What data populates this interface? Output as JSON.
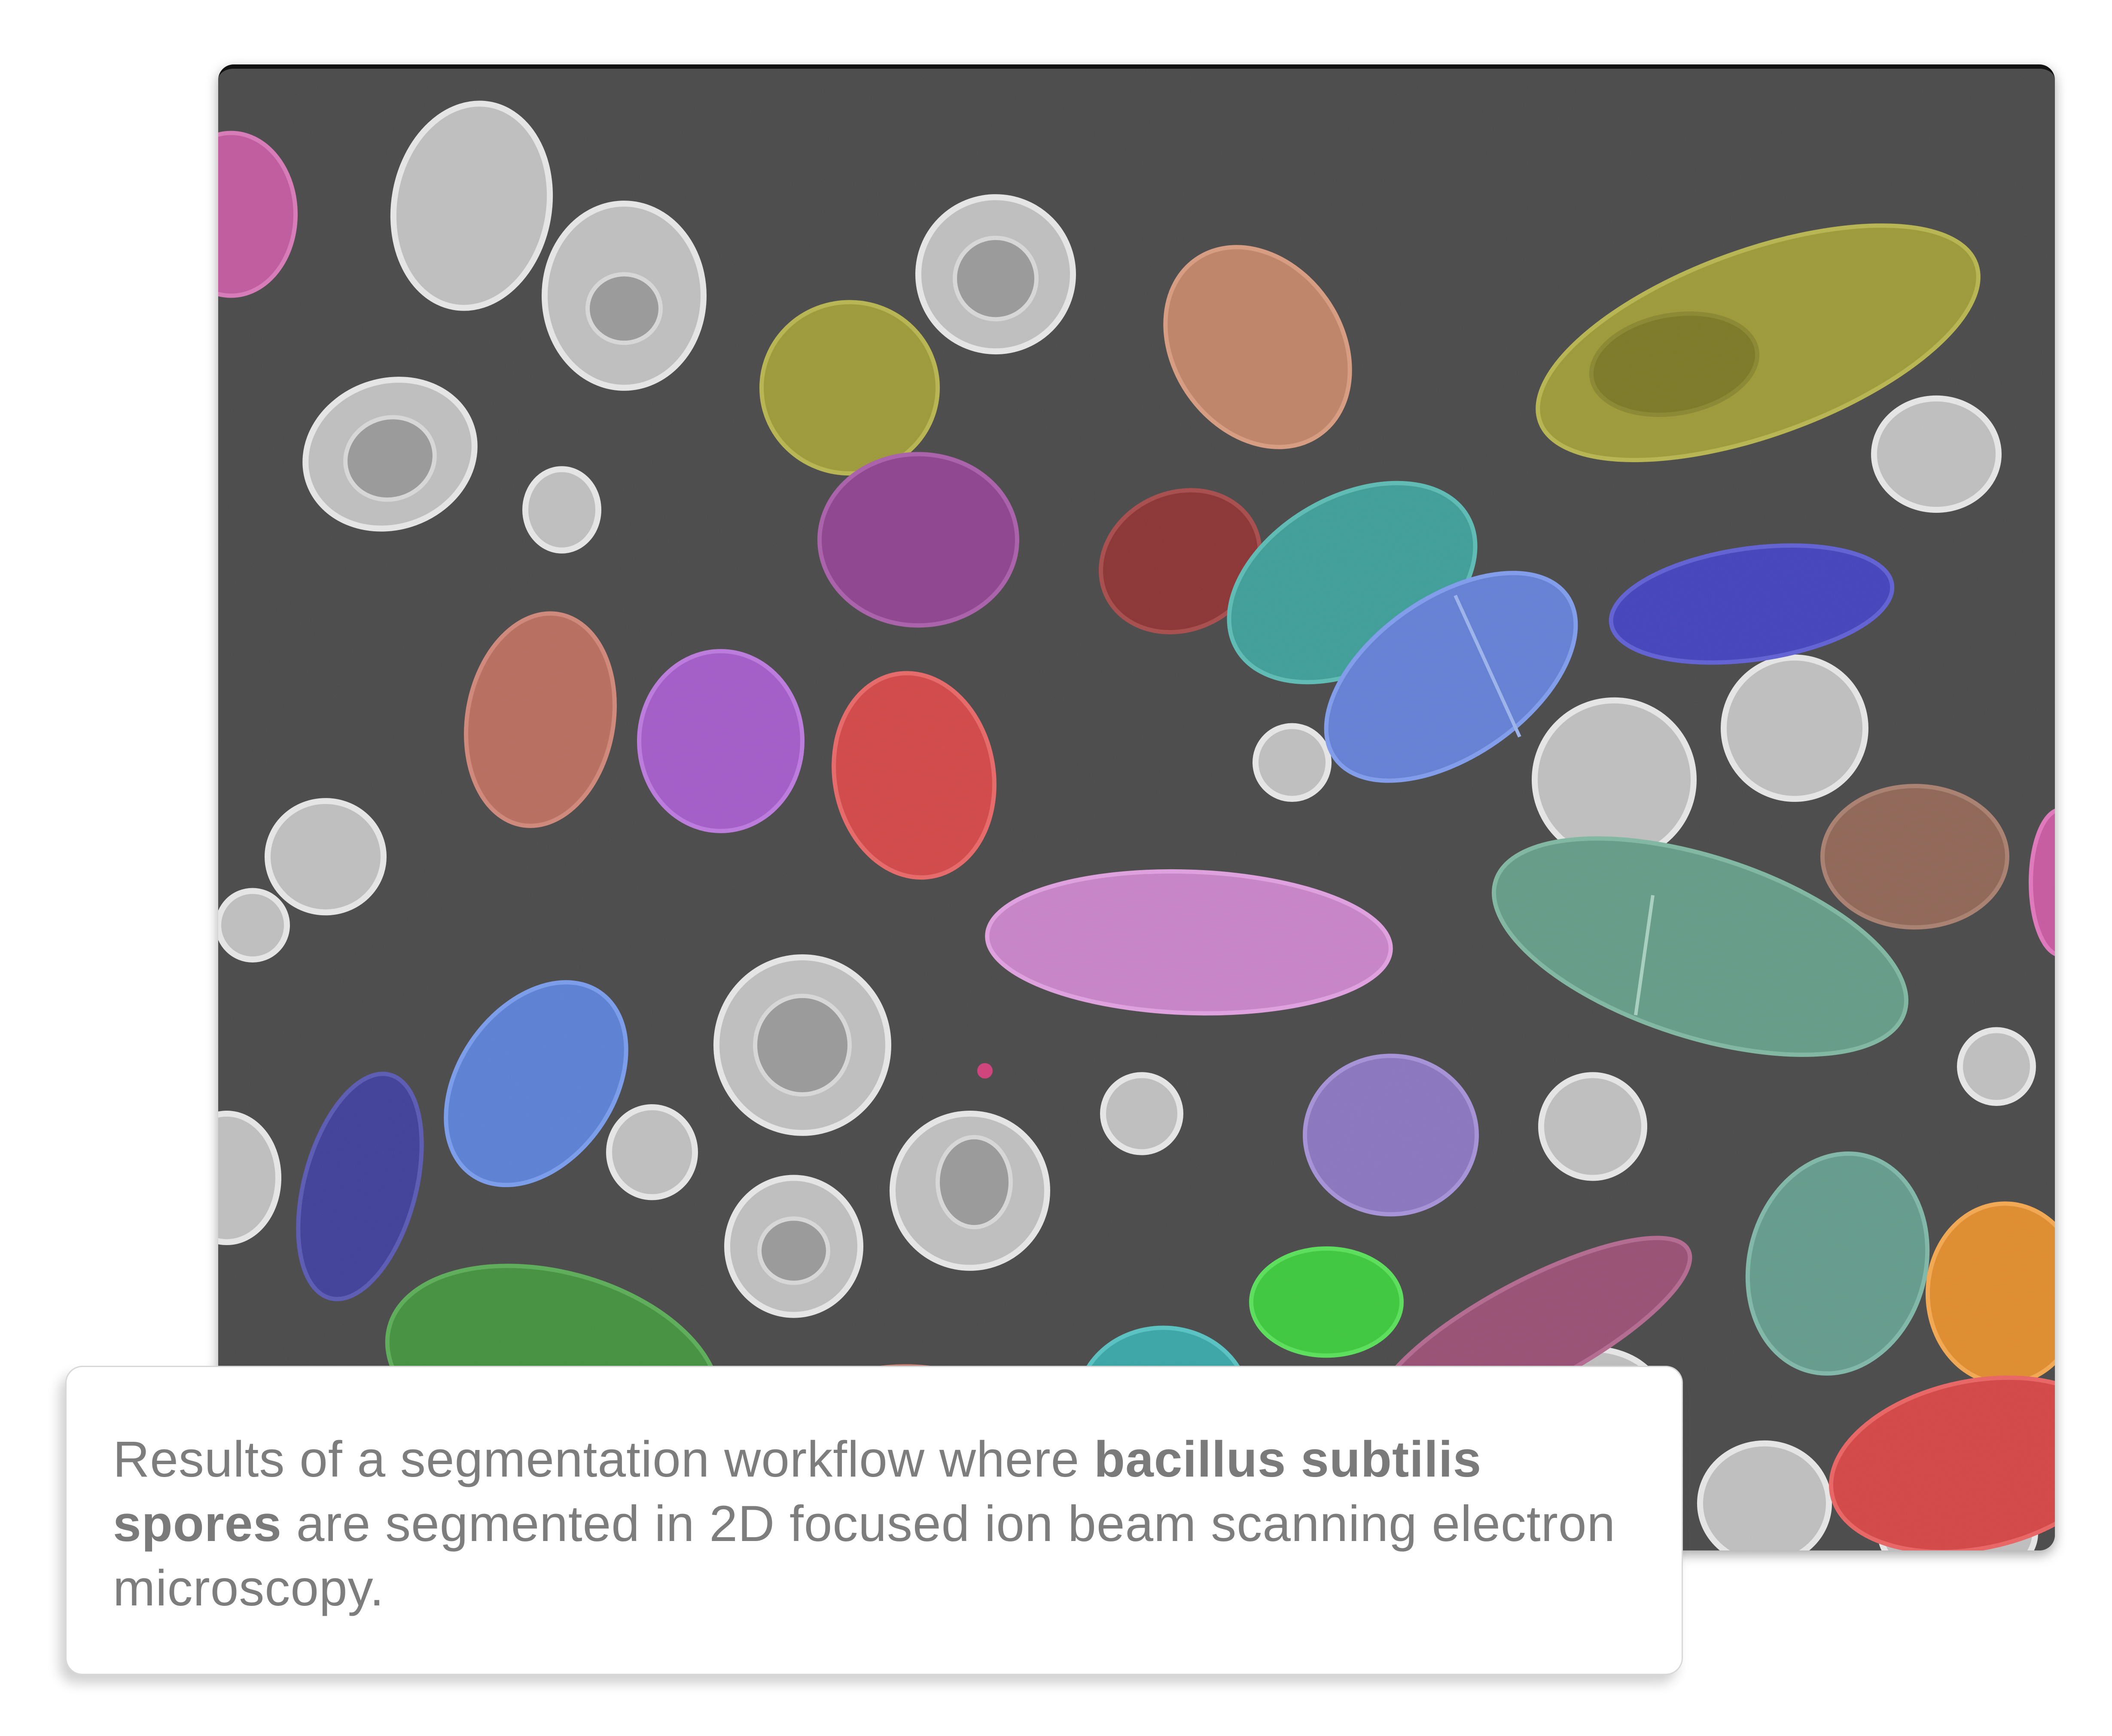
{
  "figure": {
    "description_alt": "",
    "colors": {
      "background": "#4a4a4a",
      "unlabeled_spore": "#c8c8c8",
      "segments": [
        "#d05aa8",
        "#a8a832",
        "#d08868",
        "#a8a832",
        "#a048a8",
        "#a03838",
        "#40b0a8",
        "#4848c8",
        "#d07060",
        "#b060d8",
        "#e04848",
        "#6890e0",
        "#d890d8",
        "#70a890",
        "#9880c8",
        "#6890e0",
        "#4848a8",
        "#48a048",
        "#40d040",
        "#a05880",
        "#40b0b0",
        "#70a898",
        "#e89030",
        "#e04848",
        "#b06858",
        "#d05aa8"
      ]
    }
  },
  "caption": {
    "part1": "Results of a segmentation workflow where ",
    "bold1": "bacillus subtilis spores",
    "part2": " are segmented in 2D focused ion beam scanning electron microscopy."
  }
}
